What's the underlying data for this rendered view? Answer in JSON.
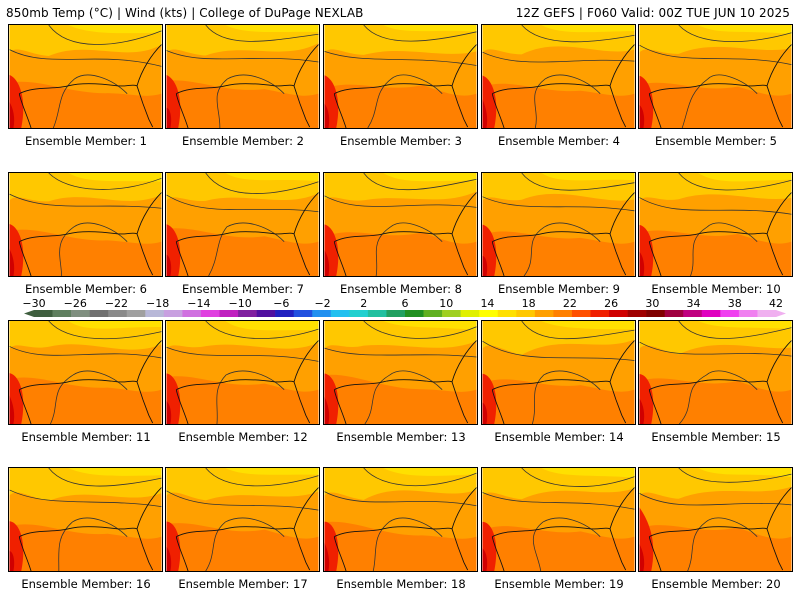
{
  "header": {
    "left": "850mb Temp (°C) | Wind (kts) | College of DuPage NEXLAB",
    "right": "12Z GEFS | F060 Valid: 00Z TUE JUN 10 2025"
  },
  "panels": [
    {
      "label": "Ensemble Member: 1"
    },
    {
      "label": "Ensemble Member: 2"
    },
    {
      "label": "Ensemble Member: 3"
    },
    {
      "label": "Ensemble Member: 4"
    },
    {
      "label": "Ensemble Member: 5"
    },
    {
      "label": "Ensemble Member: 6"
    },
    {
      "label": "Ensemble Member: 7"
    },
    {
      "label": "Ensemble Member: 8"
    },
    {
      "label": "Ensemble Member: 9"
    },
    {
      "label": "Ensemble Member: 10"
    },
    {
      "label": "Ensemble Member: 11"
    },
    {
      "label": "Ensemble Member: 12"
    },
    {
      "label": "Ensemble Member: 13"
    },
    {
      "label": "Ensemble Member: 14"
    },
    {
      "label": "Ensemble Member: 15"
    },
    {
      "label": "Ensemble Member: 16"
    },
    {
      "label": "Ensemble Member: 17"
    },
    {
      "label": "Ensemble Member: 18"
    },
    {
      "label": "Ensemble Member: 19"
    },
    {
      "label": "Ensemble Member: 20"
    }
  ],
  "colorbar": {
    "tick_labels": [
      "−30",
      "−26",
      "−22",
      "−18",
      "−14",
      "−10",
      "−6",
      "−2",
      "2",
      "6",
      "10",
      "14",
      "18",
      "22",
      "26",
      "30",
      "34",
      "38",
      "42"
    ],
    "colors": [
      "#3f5f3f",
      "#5f7f5f",
      "#7f8f7f",
      "#707070",
      "#8a8a8a",
      "#a0a0a0",
      "#b8b8d8",
      "#c8a0e0",
      "#d070e0",
      "#e040e0",
      "#c020c0",
      "#8020a0",
      "#5010a0",
      "#2020c0",
      "#2050e0",
      "#2090f0",
      "#20c0f0",
      "#20d0d0",
      "#20c0a0",
      "#20a060",
      "#209020",
      "#60b020",
      "#a0d020",
      "#e0f000",
      "#ffff00",
      "#ffe000",
      "#ffc800",
      "#ffa000",
      "#ff8000",
      "#ff5000",
      "#f02000",
      "#d00000",
      "#a00000",
      "#800000",
      "#a00040",
      "#c00080",
      "#e000c0",
      "#f040f0",
      "#f080f0",
      "#f0b0f0"
    ]
  }
}
